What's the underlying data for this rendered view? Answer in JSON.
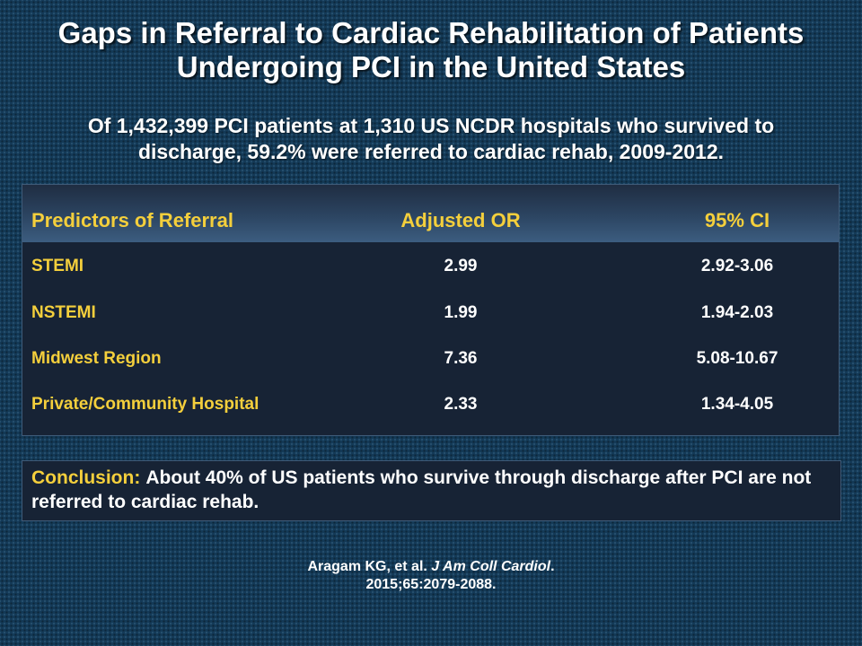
{
  "slide": {
    "title_line1": "Gaps in Referral to Cardiac Rehabilitation of Patients",
    "title_line2": "Undergoing PCI in the United States",
    "subtitle_line1": "Of 1,432,399 PCI patients at 1,310 US NCDR hospitals who survived to",
    "subtitle_line2": "discharge, 59.2% were referred to cardiac rehab, 2009-2012."
  },
  "table": {
    "headers": [
      "Predictors of Referral",
      "Adjusted OR",
      "95% CI"
    ],
    "rows": [
      {
        "predictor": "STEMI",
        "or": "2.99",
        "ci": "2.92-3.06"
      },
      {
        "predictor": "NSTEMI",
        "or": "1.99",
        "ci": "1.94-2.03"
      },
      {
        "predictor": "Midwest Region",
        "or": "7.36",
        "ci": "5.08-10.67"
      },
      {
        "predictor": "Private/Community Hospital",
        "or": "2.33",
        "ci": "1.34-4.05"
      }
    ]
  },
  "conclusion": {
    "label": "Conclusion:",
    "text": "About 40% of US patients who survive through discharge after PCI are not referred to cardiac rehab."
  },
  "citation": {
    "authors": "Aragam KG, et al.",
    "journal": "J Am Coll Cardiol",
    "details": "2015;65:2079-2088."
  },
  "colors": {
    "accent_yellow": "#f4cf3c",
    "background": "#143a57",
    "panel": "#172335"
  }
}
